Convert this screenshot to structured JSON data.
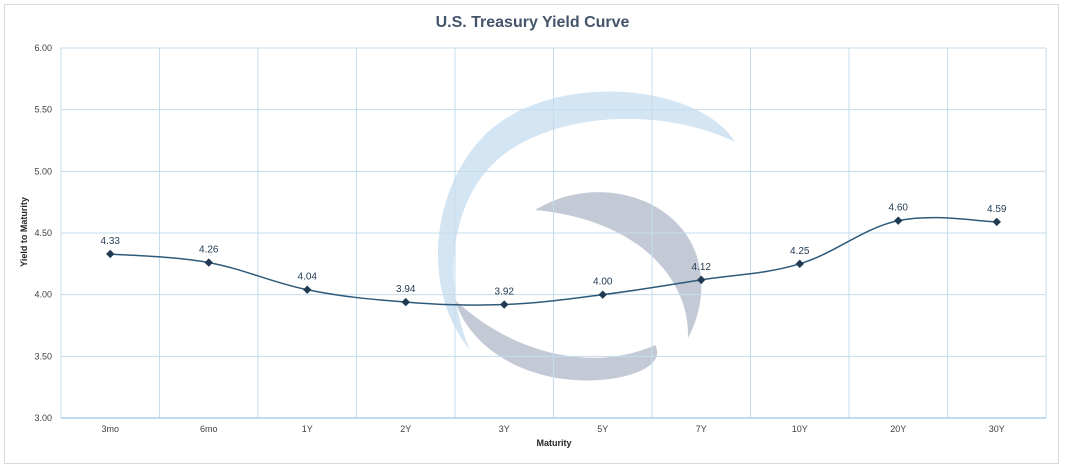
{
  "chart_data": {
    "type": "line",
    "title": "U.S. Treasury Yield Curve",
    "xlabel": "Maturity",
    "ylabel": "Yield to Maturity",
    "categories": [
      "3mo",
      "6mo",
      "1Y",
      "2Y",
      "3Y",
      "5Y",
      "7Y",
      "10Y",
      "20Y",
      "30Y"
    ],
    "values": [
      4.33,
      4.26,
      4.04,
      3.94,
      3.92,
      4.0,
      4.12,
      4.25,
      4.6,
      4.59
    ],
    "data_labels": [
      "4.33",
      "4.26",
      "4.04",
      "3.94",
      "3.92",
      "4.00",
      "4.12",
      "4.25",
      "4.60",
      "4.59"
    ],
    "ylim": [
      3.0,
      6.0
    ],
    "yticks": [
      "3.00",
      "3.50",
      "4.00",
      "4.50",
      "5.00",
      "5.50",
      "6.00"
    ],
    "grid": true,
    "legend": "none",
    "marker": "diamond",
    "smooth": true,
    "colors": {
      "line": "#2e5a7a",
      "marker": "#1f3a52",
      "grid": "#c5dcec",
      "axis": "#9dc3e6",
      "watermark_top": "#bdd7ee",
      "watermark_bottom": "#a6aec0"
    }
  }
}
